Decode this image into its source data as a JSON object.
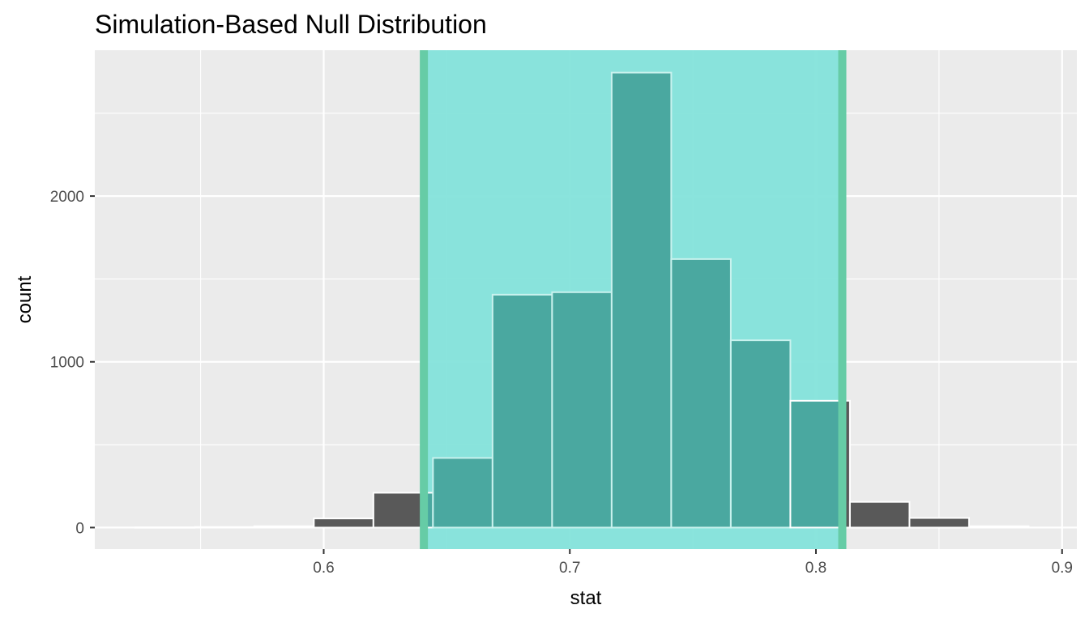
{
  "chart_data": {
    "type": "bar",
    "title": "Simulation-Based Null Distribution",
    "xlabel": "stat",
    "ylabel": "count",
    "xlim": [
      0.507,
      0.906
    ],
    "ylim": [
      -130,
      2880
    ],
    "x_ticks": [
      {
        "value": 0.6,
        "label": "0.6"
      },
      {
        "value": 0.7,
        "label": "0.7"
      },
      {
        "value": 0.8,
        "label": "0.8"
      },
      {
        "value": 0.9,
        "label": "0.9"
      }
    ],
    "y_ticks": [
      {
        "value": 0,
        "label": "0"
      },
      {
        "value": 1000,
        "label": "1000"
      },
      {
        "value": 2000,
        "label": "2000"
      }
    ],
    "x_minor_ticks": [
      0.55,
      0.65,
      0.75,
      0.85
    ],
    "y_minor_ticks": [
      500,
      1500,
      2500
    ],
    "bins": [
      {
        "xmin": 0.5234,
        "xmax": 0.5476,
        "count": 1
      },
      {
        "xmin": 0.5476,
        "xmax": 0.5718,
        "count": 3
      },
      {
        "xmin": 0.5718,
        "xmax": 0.596,
        "count": 8
      },
      {
        "xmin": 0.596,
        "xmax": 0.6202,
        "count": 55
      },
      {
        "xmin": 0.6202,
        "xmax": 0.6444,
        "count": 210
      },
      {
        "xmin": 0.6444,
        "xmax": 0.6686,
        "count": 420
      },
      {
        "xmin": 0.6686,
        "xmax": 0.6928,
        "count": 1405
      },
      {
        "xmin": 0.6928,
        "xmax": 0.717,
        "count": 1420
      },
      {
        "xmin": 0.717,
        "xmax": 0.7412,
        "count": 2745
      },
      {
        "xmin": 0.7412,
        "xmax": 0.7654,
        "count": 1620
      },
      {
        "xmin": 0.7654,
        "xmax": 0.7896,
        "count": 1130
      },
      {
        "xmin": 0.7896,
        "xmax": 0.8138,
        "count": 765
      },
      {
        "xmin": 0.8138,
        "xmax": 0.838,
        "count": 155
      },
      {
        "xmin": 0.838,
        "xmax": 0.8622,
        "count": 58
      },
      {
        "xmin": 0.8622,
        "xmax": 0.8864,
        "count": 8
      }
    ],
    "shaded_interval": {
      "lower": 0.6407,
      "upper": 0.8107
    },
    "grid": true,
    "legend": "none",
    "colors": {
      "panel_background": "#ebebeb",
      "grid": "#ffffff",
      "bar_fill": "#595959",
      "bar_outline": "#ffffff",
      "interval_fill": "#84e3db",
      "interval_line": "#66cca6",
      "bar_in_interval": "#4aa8a0"
    }
  }
}
